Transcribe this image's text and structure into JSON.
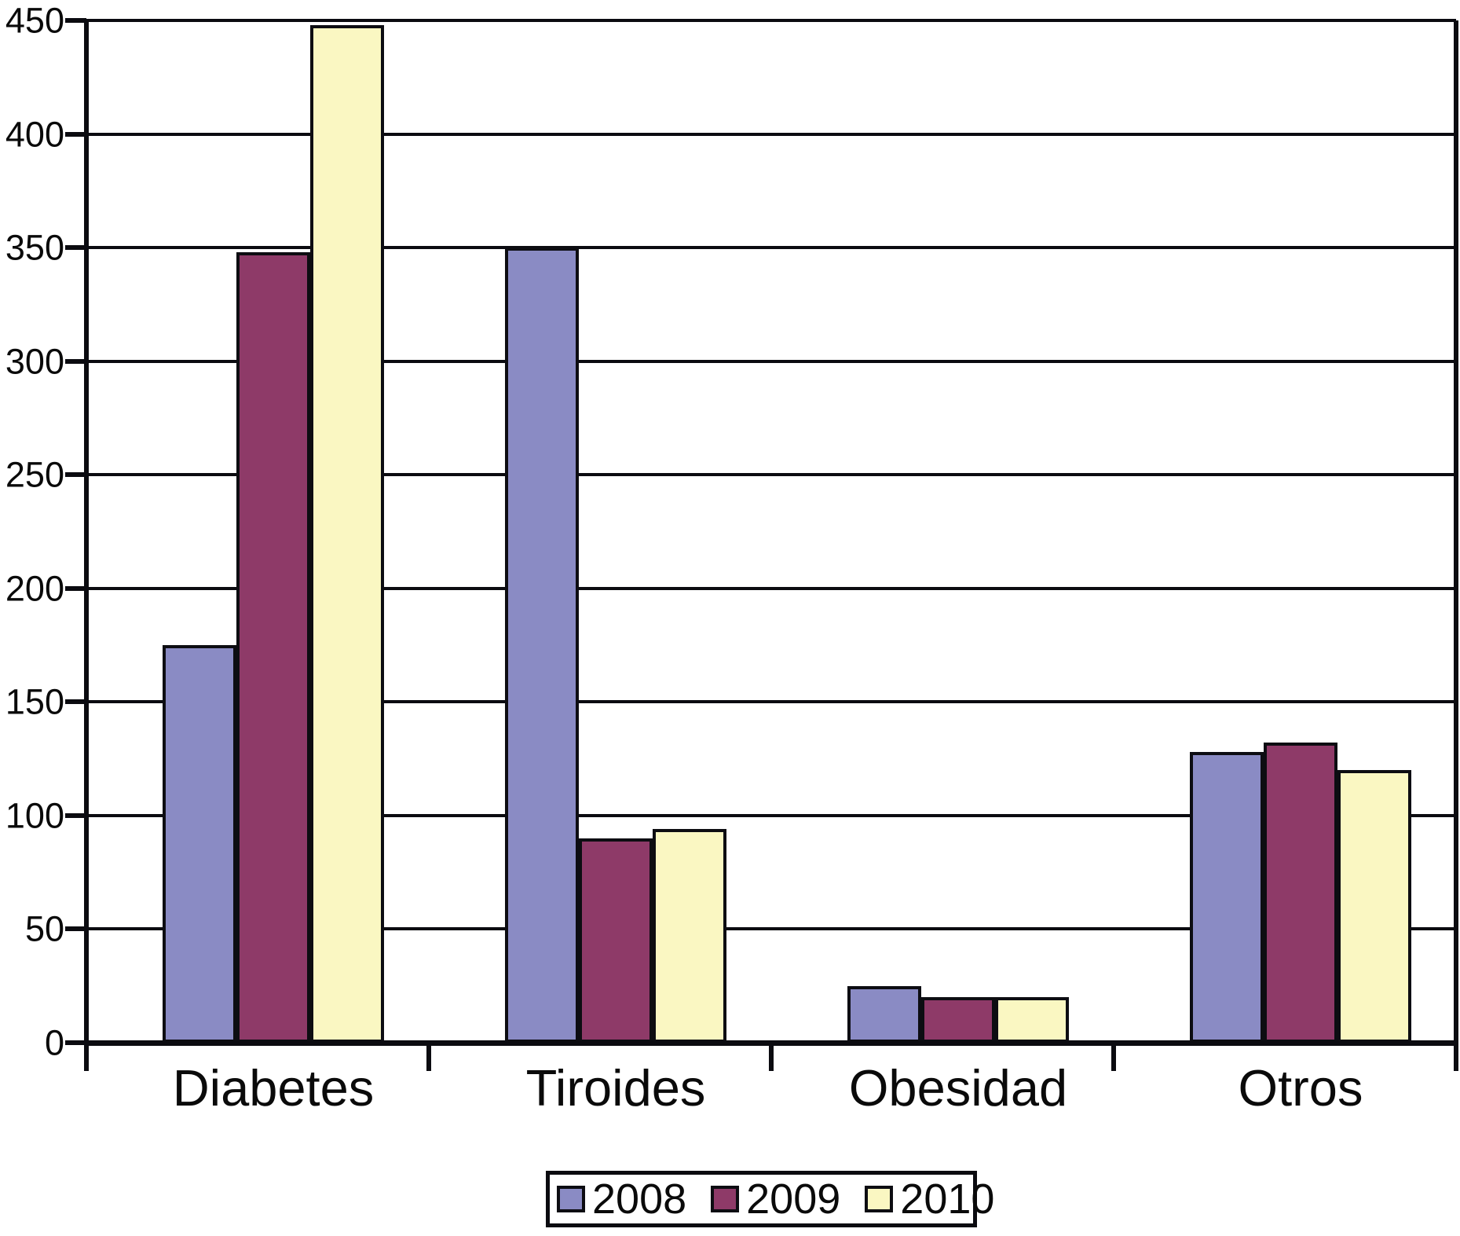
{
  "chart_data": {
    "type": "bar",
    "title": "",
    "xlabel": "",
    "ylabel": "",
    "categories": [
      "Diabetes",
      "Tiroides",
      "Obesidad",
      "Otros"
    ],
    "series": [
      {
        "name": "2008",
        "color": "#8a8bc4",
        "values": [
          175,
          350,
          25,
          128
        ]
      },
      {
        "name": "2009",
        "color": "#8e3a68",
        "values": [
          348,
          90,
          20,
          132
        ]
      },
      {
        "name": "2010",
        "color": "#faf7c2",
        "values": [
          448,
          94,
          20,
          120
        ]
      }
    ],
    "ylim": [
      0,
      450
    ],
    "ytick_step": 50,
    "ytick_labels": [
      "0",
      "50",
      "100",
      "150",
      "200",
      "250",
      "300",
      "350",
      "400",
      "450"
    ],
    "grid": "horizontal gridlines on",
    "legend_position": "bottom-center",
    "axis_color": "#0b0b10",
    "text_color": "#0a0a0a",
    "background_color": "#ffffff"
  }
}
